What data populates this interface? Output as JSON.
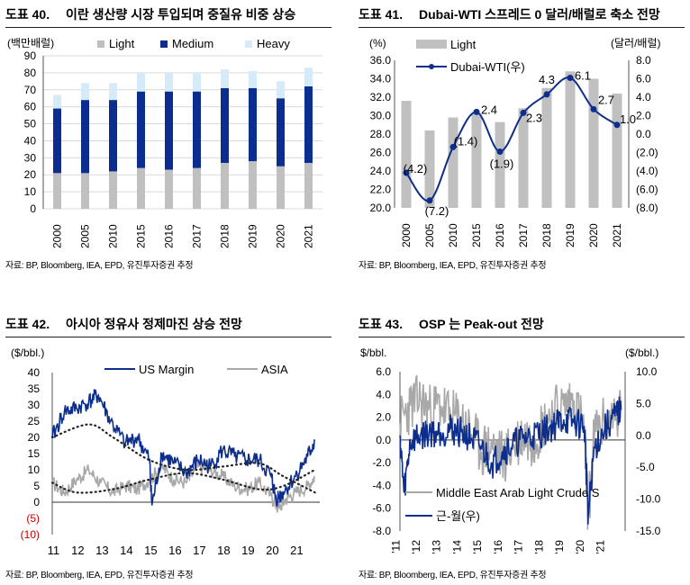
{
  "panels": {
    "p40": {
      "fig": "도표 40.",
      "title": "이란 생산량 시장 투입되며 중질유 비중 상승",
      "source": "자료: BP, Bloomberg, IEA, EPD, 유진투자증권 추정"
    },
    "p41": {
      "fig": "도표 41.",
      "title": "Dubai-WTI 스프레드 0 달러/배럴로 축소 전망",
      "source": "자료: BP, Bloomberg, IEA, EPD, 유진투자증권 추정"
    },
    "p42": {
      "fig": "도표 42.",
      "title": "아시아 정유사 정제마진 상승 전망",
      "source": "자료: BP, Bloomberg, IEA, EPD, 유진투자증권 추정"
    },
    "p43": {
      "fig": "도표 43.",
      "title": "OSP 는 Peak-out 전망",
      "source": "자료: BP, Bloomberg, IEA, EPD, 유진투자증권 추정"
    }
  },
  "colors": {
    "light": "#c0c0c0",
    "medium": "#0a2d8f",
    "heavy": "#d6ebfa",
    "line": "#0d2e8c",
    "gray": "#a8a8a8",
    "neg": "#c00000"
  },
  "chart_data": [
    {
      "id": "p40",
      "type": "bar",
      "stacked": true,
      "ylabel": "(백만배럴)",
      "ylim": [
        0,
        90
      ],
      "yticks": [
        "0",
        "10",
        "20",
        "30",
        "40",
        "50",
        "60",
        "70",
        "80",
        "90"
      ],
      "categories": [
        "2000",
        "2005",
        "2010",
        "2015",
        "2016",
        "2017",
        "2018",
        "2019",
        "2020",
        "2021"
      ],
      "series": [
        {
          "name": "Light",
          "values": [
            21,
            21,
            22,
            24,
            23,
            24,
            27,
            28,
            25,
            27
          ]
        },
        {
          "name": "Medium",
          "values": [
            38,
            43,
            42,
            45,
            46,
            45,
            44,
            43,
            40,
            45
          ]
        },
        {
          "name": "Heavy",
          "values": [
            8,
            10,
            10,
            11,
            11,
            11,
            11,
            10,
            10,
            11
          ]
        }
      ]
    },
    {
      "id": "p41",
      "type": "bar+line",
      "ylabel_left": "(%)",
      "ylabel_right": "(달러/배럴)",
      "ylim_left": [
        20,
        36
      ],
      "ylim_right": [
        -8,
        8
      ],
      "yticks_left": [
        "20.0",
        "22.0",
        "24.0",
        "26.0",
        "28.0",
        "30.0",
        "32.0",
        "34.0",
        "36.0"
      ],
      "yticks_right": [
        "(8.0)",
        "(6.0)",
        "(4.0)",
        "(2.0)",
        "0.0",
        "2.0",
        "4.0",
        "6.0",
        "8.0"
      ],
      "categories": [
        "2000",
        "2005",
        "2010",
        "2015",
        "2016",
        "2017",
        "2018",
        "2019",
        "2020",
        "2021"
      ],
      "series": [
        {
          "name": "Light",
          "axis": "left",
          "values": [
            31.6,
            28.4,
            29.8,
            30.2,
            29.3,
            30.8,
            33.0,
            34.8,
            34.0,
            32.4
          ]
        },
        {
          "name": "Dubai-WTI(우)",
          "axis": "right",
          "values": [
            -4.2,
            -7.2,
            -1.4,
            2.4,
            -1.9,
            2.3,
            4.3,
            6.1,
            2.7,
            1.0
          ],
          "labels": [
            "(4.2)",
            "(7.2)",
            "(1.4)",
            "2.4",
            "(1.9)",
            "2.3",
            "4.3",
            "6.1",
            "2.7",
            "1.0"
          ]
        }
      ]
    },
    {
      "id": "p42",
      "type": "line",
      "ylabel": "($/bbl.)",
      "ylim": [
        -10,
        40
      ],
      "yticks": [
        "40",
        "35",
        "30",
        "25",
        "20",
        "15",
        "10",
        "5",
        "0",
        "(5)",
        "(10)"
      ],
      "xticks": [
        "11",
        "12",
        "13",
        "14",
        "15",
        "16",
        "17",
        "18",
        "19",
        "20",
        "21"
      ],
      "series": [
        {
          "name": "US Margin",
          "x": [
            11.0,
            11.5,
            12.0,
            12.5,
            12.9,
            13.4,
            14.0,
            14.5,
            15.0,
            15.1,
            15.5,
            16.0,
            16.5,
            17.0,
            17.5,
            18.0,
            18.5,
            19.0,
            19.5,
            20.0,
            20.2,
            20.5,
            21.0,
            21.5,
            21.8
          ],
          "values": [
            20,
            28,
            29,
            31,
            33,
            25,
            18,
            20,
            13,
            -1,
            15,
            12,
            9,
            13,
            11,
            16,
            14,
            13,
            13,
            8,
            1,
            3,
            8,
            14,
            19
          ]
        },
        {
          "name": "ASIA",
          "x": [
            11.0,
            11.5,
            12.0,
            12.5,
            13.0,
            13.5,
            14.0,
            14.5,
            15.0,
            15.5,
            16.0,
            16.5,
            17.0,
            17.5,
            18.0,
            18.5,
            19.0,
            19.5,
            20.0,
            20.3,
            20.6,
            21.0,
            21.5,
            21.8
          ],
          "values": [
            6,
            3,
            7,
            10,
            6,
            3,
            5,
            4,
            7,
            11,
            7,
            6,
            11,
            10,
            8,
            5,
            4,
            6,
            2,
            -2,
            1,
            3,
            5,
            8
          ]
        }
      ]
    },
    {
      "id": "p43",
      "type": "line",
      "ylabel_left": "$/bbl.",
      "ylabel_right": "($/bbl.)",
      "ylim_left": [
        -8,
        6
      ],
      "ylim_right": [
        -15,
        10
      ],
      "yticks_left": [
        "6.0",
        "4.0",
        "2.0",
        "0.0",
        "-2.0",
        "-4.0",
        "-6.0",
        "-8.0"
      ],
      "yticks_right": [
        "10.0",
        "5.0",
        "0.0",
        "-5.0",
        "-10.0",
        "-15.0"
      ],
      "xticks": [
        "'11",
        "'12",
        "'13",
        "'14",
        "'15",
        "'16",
        "'17",
        "'18",
        "'19",
        "'20",
        "'21"
      ],
      "series": [
        {
          "name": "Middle East Arab Light Crude S",
          "axis": "left",
          "x": [
            11.0,
            11.5,
            12.0,
            12.5,
            13.0,
            13.5,
            14.0,
            14.5,
            15.0,
            15.5,
            16.0,
            16.5,
            17.0,
            17.5,
            18.0,
            18.5,
            19.0,
            19.5,
            20.0,
            20.2,
            20.5,
            21.0,
            21.8
          ],
          "values": [
            1.5,
            3.0,
            3.5,
            2.5,
            3.0,
            2.0,
            1.8,
            0.5,
            -1.0,
            -0.5,
            -1.5,
            -0.8,
            0.5,
            0.0,
            1.5,
            2.5,
            3.0,
            3.5,
            1.0,
            -6.5,
            0.5,
            1.5,
            2.8
          ]
        },
        {
          "name": "근-월(우)",
          "axis": "right",
          "x": [
            11.0,
            11.2,
            11.5,
            12.0,
            12.5,
            13.0,
            13.5,
            14.0,
            14.5,
            15.0,
            15.5,
            16.0,
            16.5,
            17.0,
            17.5,
            18.0,
            18.5,
            19.0,
            19.5,
            20.0,
            20.2,
            20.5,
            21.0,
            21.5,
            21.8
          ],
          "values": [
            0,
            -9,
            -1,
            0,
            0.5,
            0.5,
            1.0,
            0.5,
            -0.5,
            -2.0,
            -4.5,
            -2.5,
            -1.5,
            -0.5,
            0.0,
            0.5,
            1.5,
            2.5,
            2.0,
            1.5,
            -12.5,
            -2.0,
            1.0,
            3.0,
            4.0
          ]
        }
      ]
    }
  ]
}
